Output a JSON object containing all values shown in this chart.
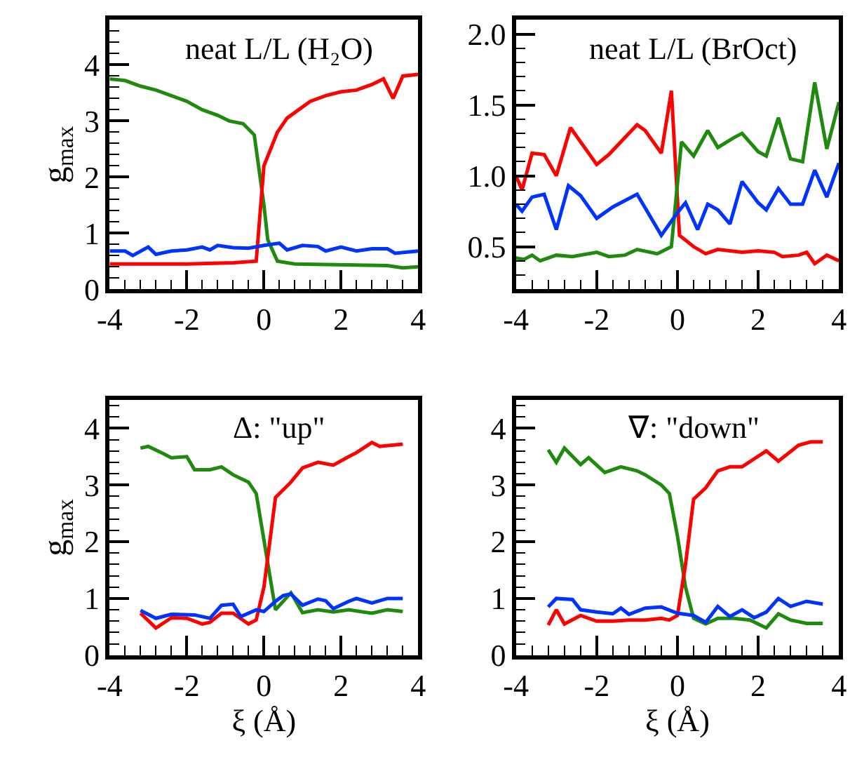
{
  "chart_data": [
    {
      "type": "line",
      "title": "neat L/L (H₂O)",
      "ylabel": "g$_{max}$",
      "xlim": [
        -4,
        4
      ],
      "ylim": [
        0,
        4.8
      ],
      "xticks": [
        -4,
        -2,
        0,
        2,
        4
      ],
      "yticks": [
        0,
        1,
        2,
        3,
        4
      ],
      "series": [
        {
          "color": "#1f8a0e",
          "x": [
            -4,
            -3.6,
            -3.2,
            -2.8,
            -2.4,
            -2,
            -1.6,
            -1.2,
            -0.9,
            -0.54,
            -0.25,
            0,
            0.1,
            0.35,
            0.8,
            1.6,
            2.4,
            3.2,
            3.6,
            4
          ],
          "values": [
            3.75,
            3.72,
            3.62,
            3.55,
            3.45,
            3.35,
            3.2,
            3.1,
            3.0,
            2.95,
            2.75,
            1.5,
            0.88,
            0.5,
            0.45,
            0.44,
            0.43,
            0.42,
            0.38,
            0.4
          ]
        },
        {
          "color": "#ff0000",
          "x": [
            -4,
            -2,
            -0.8,
            -0.2,
            0,
            0.35,
            0.6,
            1.2,
            1.6,
            2,
            2.4,
            2.8,
            3.1,
            3.35,
            3.6,
            4
          ],
          "values": [
            0.45,
            0.45,
            0.47,
            0.5,
            2.2,
            2.8,
            3.05,
            3.35,
            3.45,
            3.52,
            3.55,
            3.65,
            3.75,
            3.4,
            3.8,
            3.83
          ]
        },
        {
          "color": "#0033ff",
          "x": [
            -4,
            -3.6,
            -3.4,
            -3,
            -2.8,
            -2.4,
            -2,
            -1.6,
            -1.4,
            -1.2,
            -0.8,
            -0.4,
            0,
            0.4,
            0.6,
            1,
            1.4,
            1.6,
            2,
            2.4,
            2.8,
            3.2,
            3.4,
            4
          ],
          "values": [
            0.68,
            0.68,
            0.6,
            0.75,
            0.62,
            0.68,
            0.7,
            0.75,
            0.7,
            0.78,
            0.74,
            0.73,
            0.78,
            0.82,
            0.7,
            0.78,
            0.76,
            0.68,
            0.75,
            0.68,
            0.72,
            0.72,
            0.64,
            0.68
          ]
        }
      ]
    },
    {
      "type": "line",
      "title": "neat L/L (BrOct)",
      "xlim": [
        -4,
        4
      ],
      "ylim": [
        0.2,
        2.1
      ],
      "xticks": [
        -4,
        -2,
        0,
        2,
        4
      ],
      "yticks": [
        0.5,
        {
          "value": 1,
          "label": "1.0"
        },
        1.5,
        {
          "value": 2,
          "label": "2.0"
        }
      ],
      "series": [
        {
          "color": "#ff0000",
          "x": [
            -4,
            -3.85,
            -3.6,
            -3.3,
            -3,
            -2.65,
            -2,
            -1.7,
            -1,
            -0.8,
            -0.4,
            -0.15,
            0.05,
            0.4,
            0.7,
            1,
            1.6,
            2,
            2.4,
            2.6,
            3,
            3.2,
            3.4,
            3.7,
            4
          ],
          "values": [
            1.0,
            0.9,
            1.16,
            1.15,
            1.0,
            1.34,
            1.08,
            1.15,
            1.36,
            1.32,
            1.16,
            1.6,
            0.58,
            0.5,
            0.45,
            0.48,
            0.46,
            0.47,
            0.46,
            0.43,
            0.44,
            0.46,
            0.38,
            0.44,
            0.4
          ]
        },
        {
          "color": "#1f8a0e",
          "x": [
            -4,
            -3.8,
            -3.6,
            -3.4,
            -3,
            -2.6,
            -2,
            -1.7,
            -1.3,
            -1,
            -0.5,
            -0.15,
            0.1,
            0.4,
            0.75,
            1,
            1.4,
            1.6,
            2,
            2.2,
            2.5,
            2.8,
            3.1,
            3.4,
            3.7,
            4
          ],
          "values": [
            0.42,
            0.41,
            0.44,
            0.4,
            0.44,
            0.43,
            0.46,
            0.43,
            0.44,
            0.48,
            0.45,
            0.5,
            1.24,
            1.14,
            1.32,
            1.2,
            1.27,
            1.3,
            1.17,
            1.14,
            1.41,
            1.12,
            1.1,
            1.66,
            1.19,
            1.52
          ]
        },
        {
          "color": "#0033ff",
          "x": [
            -4,
            -3.85,
            -3.6,
            -3.3,
            -3,
            -2.7,
            -2.4,
            -2,
            -1.6,
            -1,
            -0.4,
            0,
            0.2,
            0.5,
            0.75,
            1,
            1.3,
            1.6,
            2,
            2.2,
            2.5,
            2.8,
            3.1,
            3.4,
            3.7,
            4
          ],
          "values": [
            0.8,
            0.75,
            0.85,
            0.87,
            0.62,
            0.93,
            0.86,
            0.7,
            0.78,
            0.87,
            0.58,
            0.74,
            0.81,
            0.62,
            0.8,
            0.76,
            0.66,
            0.96,
            0.81,
            0.76,
            0.91,
            0.8,
            0.8,
            1.04,
            0.85,
            1.09
          ]
        }
      ]
    },
    {
      "type": "line",
      "title": "Δ: \"up\"",
      "xlabel": "ξ (Å)",
      "ylabel": "g$_{max}$",
      "xlim": [
        -4,
        4
      ],
      "ylim": [
        0,
        4.5
      ],
      "xticks": [
        -4,
        -2,
        0,
        2,
        4
      ],
      "yticks": [
        0,
        1,
        2,
        3,
        4
      ],
      "series": [
        {
          "color": "#1f8a0e",
          "x": [
            -3.2,
            -3,
            -2.6,
            -2.4,
            -2,
            -1.8,
            -1.4,
            -1.1,
            -0.8,
            -0.4,
            -0.2,
            0.3,
            0.7,
            1,
            1.4,
            1.8,
            2.2,
            2.8,
            3.2,
            3.6
          ],
          "values": [
            3.65,
            3.68,
            3.55,
            3.48,
            3.5,
            3.27,
            3.27,
            3.32,
            3.18,
            3.05,
            2.85,
            0.8,
            1.1,
            0.75,
            0.8,
            0.76,
            0.8,
            0.74,
            0.8,
            0.77
          ]
        },
        {
          "color": "#ff0000",
          "x": [
            -3.2,
            -2.8,
            -2.4,
            -2,
            -1.6,
            -1.4,
            -1.1,
            -0.8,
            -0.4,
            -0.2,
            0,
            0.3,
            0.7,
            1,
            1.4,
            1.8,
            2.2,
            2.4,
            2.8,
            3,
            3.6
          ],
          "values": [
            0.74,
            0.48,
            0.66,
            0.65,
            0.55,
            0.58,
            0.74,
            0.74,
            0.55,
            0.62,
            1.2,
            2.78,
            3.05,
            3.3,
            3.4,
            3.35,
            3.5,
            3.57,
            3.75,
            3.68,
            3.72
          ]
        },
        {
          "color": "#0033ff",
          "x": [
            -3.2,
            -2.8,
            -2.4,
            -1.8,
            -1.4,
            -1.1,
            -0.8,
            -0.6,
            -0.2,
            0,
            0.3,
            0.5,
            0.7,
            1,
            1.4,
            1.6,
            1.8,
            2.2,
            2.4,
            2.8,
            3.2,
            3.6
          ],
          "values": [
            0.79,
            0.65,
            0.72,
            0.71,
            0.65,
            0.88,
            0.9,
            0.68,
            0.8,
            0.77,
            0.95,
            1.05,
            1.08,
            0.88,
            0.99,
            0.96,
            0.82,
            0.95,
            1.0,
            0.92,
            1.0,
            1.0
          ]
        }
      ]
    },
    {
      "type": "line",
      "title": "∇: \"down\"",
      "xlabel": "ξ (Å)",
      "xlim": [
        -4,
        4
      ],
      "ylim": [
        0,
        4.5
      ],
      "xticks": [
        -4,
        -2,
        0,
        2,
        4
      ],
      "yticks": [
        0,
        1,
        2,
        3,
        4
      ],
      "series": [
        {
          "color": "#1f8a0e",
          "x": [
            -3.2,
            -3,
            -2.8,
            -2.4,
            -2.2,
            -1.8,
            -1.4,
            -1,
            -0.8,
            -0.4,
            -0.2,
            0,
            0.2,
            0.4,
            0.7,
            1,
            1.4,
            1.8,
            2.2,
            2.5,
            2.8,
            3.2,
            3.6
          ],
          "values": [
            3.62,
            3.4,
            3.65,
            3.36,
            3.48,
            3.22,
            3.32,
            3.25,
            3.18,
            3.0,
            2.85,
            2.1,
            1.2,
            0.65,
            0.55,
            0.65,
            0.65,
            0.62,
            0.48,
            0.73,
            0.62,
            0.56,
            0.56
          ]
        },
        {
          "color": "#ff0000",
          "x": [
            -3.2,
            -3,
            -2.8,
            -2.4,
            -2,
            -1.6,
            -1.2,
            -0.8,
            -0.4,
            -0.2,
            0,
            0.2,
            0.4,
            0.7,
            1,
            1.3,
            1.6,
            2.2,
            2.5,
            3,
            3.3,
            3.6
          ],
          "values": [
            0.53,
            0.8,
            0.55,
            0.7,
            0.6,
            0.6,
            0.62,
            0.62,
            0.65,
            0.62,
            0.7,
            1.6,
            2.75,
            2.95,
            3.25,
            3.32,
            3.32,
            3.6,
            3.42,
            3.7,
            3.76,
            3.76
          ]
        },
        {
          "color": "#0033ff",
          "x": [
            -3.2,
            -3,
            -2.6,
            -2.4,
            -2,
            -1.6,
            -1.4,
            -1.2,
            -0.8,
            -0.4,
            0,
            0.2,
            0.4,
            0.7,
            1,
            1.3,
            1.6,
            1.9,
            2.2,
            2.5,
            2.8,
            3.2,
            3.6
          ],
          "values": [
            0.85,
            1.0,
            0.98,
            0.8,
            0.76,
            0.73,
            0.83,
            0.72,
            0.83,
            0.85,
            0.74,
            0.72,
            0.7,
            0.58,
            0.86,
            0.68,
            0.8,
            0.66,
            0.76,
            1.0,
            0.86,
            0.95,
            0.9
          ]
        }
      ]
    }
  ]
}
